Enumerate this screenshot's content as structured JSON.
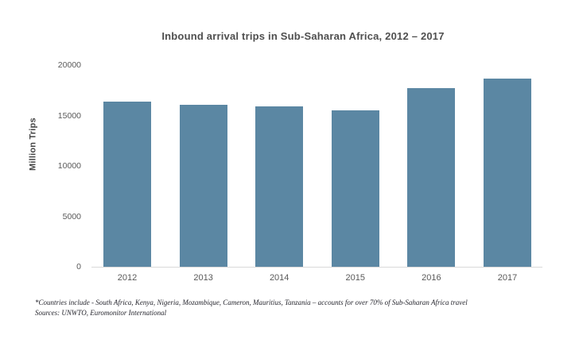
{
  "chart_data": {
    "type": "bar",
    "title": "Inbound arrival trips in Sub-Saharan Africa, 2012 – 2017",
    "xlabel": "",
    "ylabel": "Million Trips",
    "categories": [
      "2012",
      "2013",
      "2014",
      "2015",
      "2016",
      "2017"
    ],
    "values": [
      16400,
      16100,
      15900,
      15500,
      17700,
      18700
    ],
    "ylim": [
      0,
      20000
    ],
    "yticks": [
      0,
      5000,
      10000,
      15000,
      20000
    ],
    "grid": false,
    "legend": false,
    "bar_color": "#5b87a3"
  },
  "footnote": {
    "line1": "*Countries include - South Africa, Kenya, Nigeria, Mozambique, Cameron, Mauritius, Tanzania – accounts for over 70% of Sub-Saharan Africa travel",
    "line2": "Sources: UNWTO, Euromonitor International"
  },
  "colors": {
    "bar": "#5b87a3",
    "title_text": "#4f4f4f",
    "tick_text": "#595959",
    "axis_line": "#d9d9d9",
    "footnote_text": "#26262e",
    "background": "#ffffff"
  }
}
